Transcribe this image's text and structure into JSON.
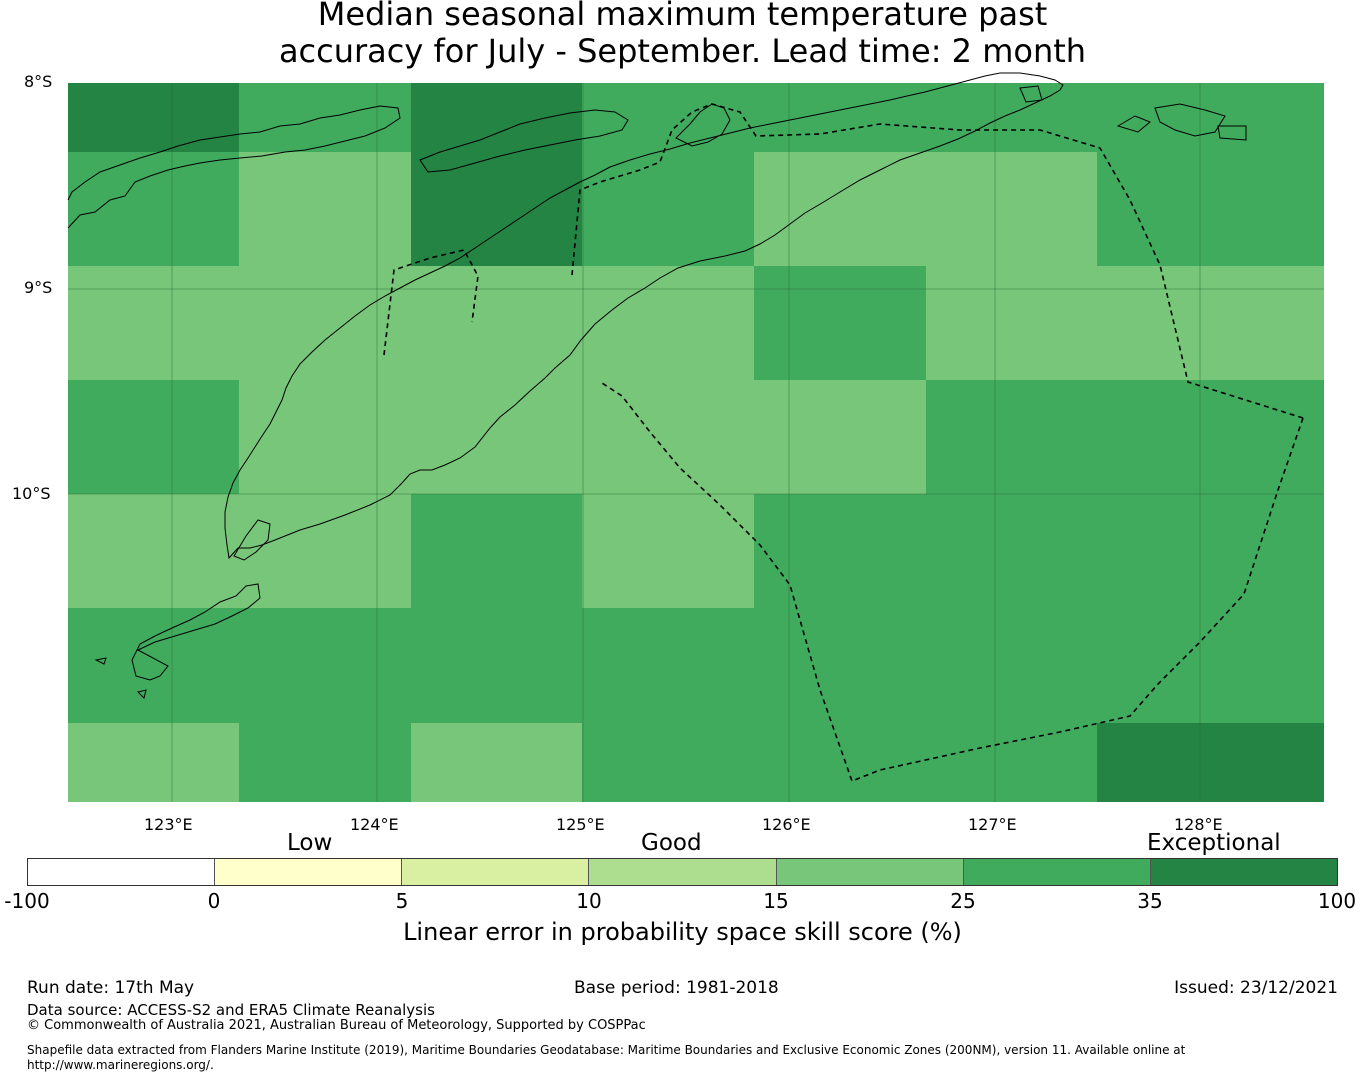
{
  "title": {
    "line1": "Median seasonal maximum temperature past",
    "line2": "accuracy for July - September. Lead time: 2 month"
  },
  "map": {
    "lat_labels": [
      "8°S",
      "9°S",
      "10°S"
    ],
    "lon_labels": [
      "123°E",
      "124°E",
      "125°E",
      "126°E",
      "127°E",
      "128°E"
    ],
    "colors": {
      "c0": "#ffffff",
      "c1": "#ffffcc",
      "c2": "#d9f0a3",
      "c3": "#addd8e",
      "c4": "#78c679",
      "c5": "#41ab5d",
      "c6": "#238443"
    },
    "grid_classes": [
      [
        6,
        5,
        6,
        5,
        5,
        5,
        5
      ],
      [
        5,
        4,
        6,
        5,
        4,
        4,
        5
      ],
      [
        4,
        4,
        4,
        4,
        5,
        4,
        4
      ],
      [
        5,
        4,
        4,
        4,
        4,
        5,
        5
      ],
      [
        4,
        4,
        5,
        4,
        5,
        5,
        5
      ],
      [
        5,
        5,
        5,
        5,
        5,
        5,
        5
      ],
      [
        4,
        5,
        4,
        5,
        5,
        5,
        6
      ]
    ]
  },
  "legend": {
    "categories": [
      "Low",
      "Good",
      "Exceptional"
    ],
    "segments": [
      {
        "color": "#ffffff"
      },
      {
        "color": "#ffffcc"
      },
      {
        "color": "#d9f0a3"
      },
      {
        "color": "#addd8e"
      },
      {
        "color": "#78c679"
      },
      {
        "color": "#41ab5d"
      },
      {
        "color": "#238443"
      }
    ],
    "ticks": [
      "-100",
      "0",
      "5",
      "10",
      "15",
      "25",
      "35",
      "100"
    ],
    "label": "Linear error in probability space skill score (%)"
  },
  "footer": {
    "run_date": "Run date: 17th May",
    "base_period": "Base period: 1981-2018",
    "issued": "Issued: 23/12/2021",
    "data_source": "Data source: ACCESS-S2 and ERA5 Climate Reanalysis",
    "copyright": "© Commonwealth of Australia 2021, Australian Bureau of Meteorology, Supported by COSPPac",
    "shapefile_line1": "Shapefile data extracted from Flanders Marine Institute (2019), Maritime Boundaries Geodatabase: Maritime Boundaries and Exclusive Economic Zones (200NM), version 11. Available online at",
    "shapefile_line2": "http://www.marineregions.org/."
  }
}
